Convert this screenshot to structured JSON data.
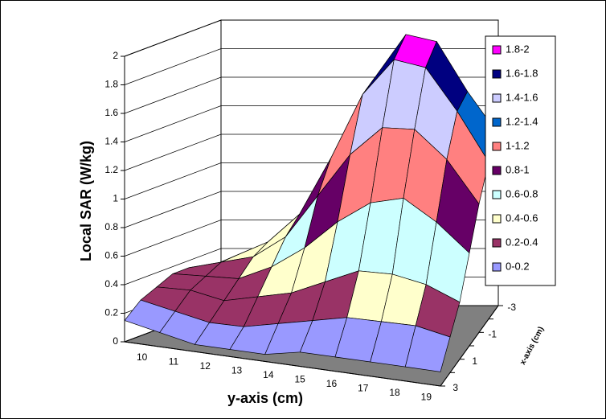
{
  "chart_data": {
    "type": "surface",
    "zlabel": "Local SAR (W/kg)",
    "ylabel": "y-axis (cm)",
    "xlabel": "x-axis (cm)",
    "zlim": [
      0,
      2
    ],
    "zticks": [
      0,
      0.2,
      0.4,
      0.6,
      0.8,
      1,
      1.2,
      1.4,
      1.6,
      1.8,
      2
    ],
    "y_categories": [
      "10",
      "11",
      "12",
      "13",
      "14",
      "15",
      "16",
      "17",
      "18",
      "19"
    ],
    "x_categories": [
      "-3",
      null,
      "-1",
      null,
      "1",
      null,
      "3"
    ],
    "values": [
      [
        0.25,
        0.35,
        0.45,
        0.7,
        1.1,
        1.6,
        1.9,
        1.85,
        1.5,
        1.2
      ],
      [
        0.3,
        0.4,
        0.5,
        0.7,
        1.1,
        1.55,
        1.8,
        1.75,
        1.45,
        1.1
      ],
      [
        0.35,
        0.4,
        0.45,
        0.6,
        0.9,
        1.2,
        1.4,
        1.4,
        1.2,
        0.9
      ],
      [
        0.35,
        0.35,
        0.35,
        0.45,
        0.6,
        0.8,
        0.95,
        1.0,
        0.85,
        0.65
      ],
      [
        0.3,
        0.3,
        0.25,
        0.3,
        0.35,
        0.45,
        0.55,
        0.55,
        0.5,
        0.4
      ],
      [
        0.25,
        0.2,
        0.15,
        0.15,
        0.2,
        0.25,
        0.3,
        0.3,
        0.3,
        0.25
      ],
      [
        0.15,
        0.1,
        0.05,
        0.05,
        0.05,
        0.1,
        0.1,
        0.1,
        0.1,
        0.1
      ]
    ],
    "legend": [
      {
        "name": "1.8-2",
        "color": "#ff00ff"
      },
      {
        "name": "1.6-1.8",
        "color": "#000080"
      },
      {
        "name": "1.4-1.6",
        "color": "#ccccff"
      },
      {
        "name": "1.2-1.4",
        "color": "#0066cc"
      },
      {
        "name": "1-1.2",
        "color": "#ff8080"
      },
      {
        "name": "0.8-1",
        "color": "#660066"
      },
      {
        "name": "0.6-0.8",
        "color": "#ccffff"
      },
      {
        "name": "0.4-0.6",
        "color": "#ffffcc"
      },
      {
        "name": "0.2-0.4",
        "color": "#993366"
      },
      {
        "name": "0-0.2",
        "color": "#9999ff"
      }
    ],
    "floor_color": "#808080"
  }
}
